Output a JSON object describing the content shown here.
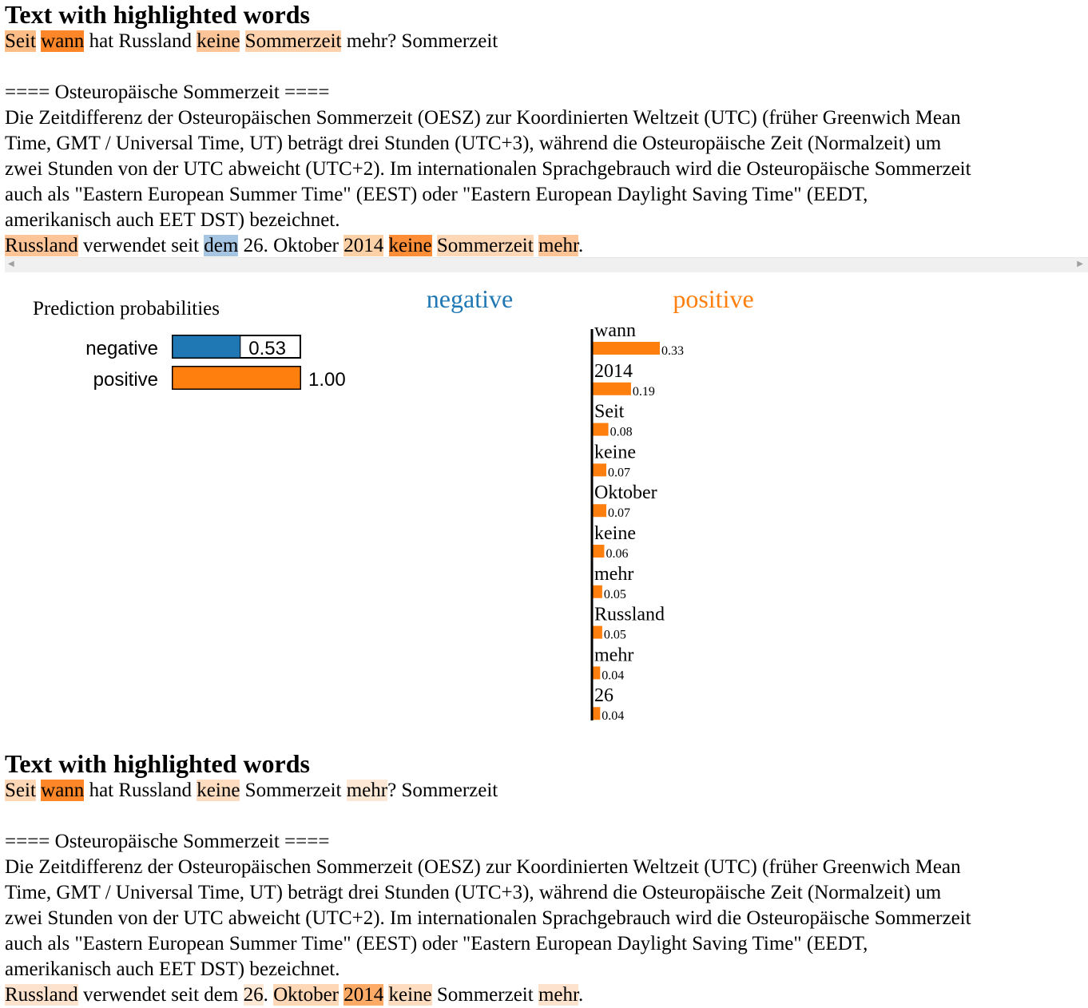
{
  "sections": [
    {
      "heading": "Text with highlighted words",
      "lines": [
        [
          {
            "t": "Seit",
            "c": "#fdbd86"
          },
          {
            "t": " "
          },
          {
            "t": "wann",
            "c": "#fd8728"
          },
          {
            "t": " hat Russland "
          },
          {
            "t": "keine",
            "c": "#fdc597"
          },
          {
            "t": " "
          },
          {
            "t": "Sommerzeit",
            "c": "#fdd2ad"
          },
          {
            "t": " mehr? Sommerzeit"
          }
        ],
        [],
        [
          {
            "t": "==== Osteuropäische Sommerzeit ===="
          }
        ],
        [
          {
            "t": "Die Zeitdifferenz der Osteuropäischen Sommerzeit (OESZ) zur Koordinierten Weltzeit (UTC) (früher Greenwich Mean"
          }
        ],
        [
          {
            "t": "Time, GMT / Universal Time, UT) beträgt drei Stunden (UTC+3), während die Osteuropäische Zeit (Normalzeit) um"
          }
        ],
        [
          {
            "t": "zwei Stunden von der UTC abweicht (UTC+2). Im internationalen Sprachgebrauch wird die Osteuropäische Sommerzeit"
          }
        ],
        [
          {
            "t": "auch als \"Eastern European Summer Time\" (EEST) oder \"Eastern European Daylight Saving Time\" (EEDT,"
          }
        ],
        [
          {
            "t": "amerikanisch auch EET DST) bezeichnet."
          }
        ],
        [
          {
            "t": "Russland",
            "c": "#fdc597"
          },
          {
            "t": " verwendet seit "
          },
          {
            "t": "dem",
            "c": "#a6c5e2"
          },
          {
            "t": " 26. Oktober "
          },
          {
            "t": "2014",
            "c": "#fdd1a8"
          },
          {
            "t": " "
          },
          {
            "t": "keine",
            "c": "#fd8d37"
          },
          {
            "t": " "
          },
          {
            "t": "Sommerzeit",
            "c": "#fdd7b6"
          },
          {
            "t": " "
          },
          {
            "t": "mehr",
            "c": "#fdc597"
          },
          {
            "t": "."
          }
        ]
      ]
    },
    {
      "heading": "Text with highlighted words",
      "lines": [
        [
          {
            "t": "Seit",
            "c": "#fdd7b6"
          },
          {
            "t": " "
          },
          {
            "t": "wann",
            "c": "#fd8728"
          },
          {
            "t": " hat Russland "
          },
          {
            "t": "keine",
            "c": "#fddcc0"
          },
          {
            "t": " Sommerzeit "
          },
          {
            "t": "mehr",
            "c": "#fde8d6"
          },
          {
            "t": "? Sommerzeit"
          }
        ],
        [],
        [
          {
            "t": "==== Osteuropäische Sommerzeit ===="
          }
        ],
        [
          {
            "t": "Die Zeitdifferenz der Osteuropäischen Sommerzeit (OESZ) zur Koordinierten Weltzeit (UTC) (früher Greenwich Mean"
          }
        ],
        [
          {
            "t": "Time, GMT / Universal Time, UT) beträgt drei Stunden (UTC+3), während die Osteuropäische Zeit (Normalzeit) um"
          }
        ],
        [
          {
            "t": "zwei Stunden von der UTC abweicht (UTC+2). Im internationalen Sprachgebrauch wird die Osteuropäische Sommerzeit"
          }
        ],
        [
          {
            "t": "auch als \"Eastern European Summer Time\" (EEST) oder \"Eastern European Daylight Saving Time\" (EEDT,"
          }
        ],
        [
          {
            "t": "amerikanisch auch EET DST) bezeichnet."
          }
        ],
        [
          {
            "t": "Russland",
            "c": "#fde3cd"
          },
          {
            "t": " verwendet seit dem "
          },
          {
            "t": "26",
            "c": "#fde8d6"
          },
          {
            "t": ". "
          },
          {
            "t": "Oktober",
            "c": "#fdd7b6"
          },
          {
            "t": " "
          },
          {
            "t": "2014",
            "c": "#fdab67"
          },
          {
            "t": " "
          },
          {
            "t": "keine",
            "c": "#fddcc0"
          },
          {
            "t": " Sommerzeit "
          },
          {
            "t": "mehr",
            "c": "#fde3cd"
          },
          {
            "t": "."
          }
        ]
      ]
    }
  ],
  "colors": {
    "negative": "#1f77b4",
    "positive": "#ff7f0e"
  },
  "chart_data": [
    {
      "type": "bar",
      "title": "Prediction probabilities",
      "categories": [
        "negative",
        "positive"
      ],
      "values": [
        0.53,
        1.0
      ],
      "value_labels": [
        "0.53",
        "1.00"
      ],
      "xlim": [
        0,
        1
      ]
    },
    {
      "type": "bar",
      "orientation": "horizontal",
      "legend": [
        "negative",
        "positive"
      ],
      "categories": [
        "wann",
        "2014",
        "Seit",
        "keine",
        "Oktober",
        "keine",
        "mehr",
        "Russland",
        "mehr",
        "26"
      ],
      "values": [
        0.33,
        0.19,
        0.08,
        0.07,
        0.07,
        0.06,
        0.05,
        0.05,
        0.04,
        0.04
      ],
      "value_labels": [
        "0.33",
        "0.19",
        "0.08",
        "0.07",
        "0.07",
        "0.06",
        "0.05",
        "0.05",
        "0.04",
        "0.04"
      ],
      "series_color": "positive"
    }
  ]
}
